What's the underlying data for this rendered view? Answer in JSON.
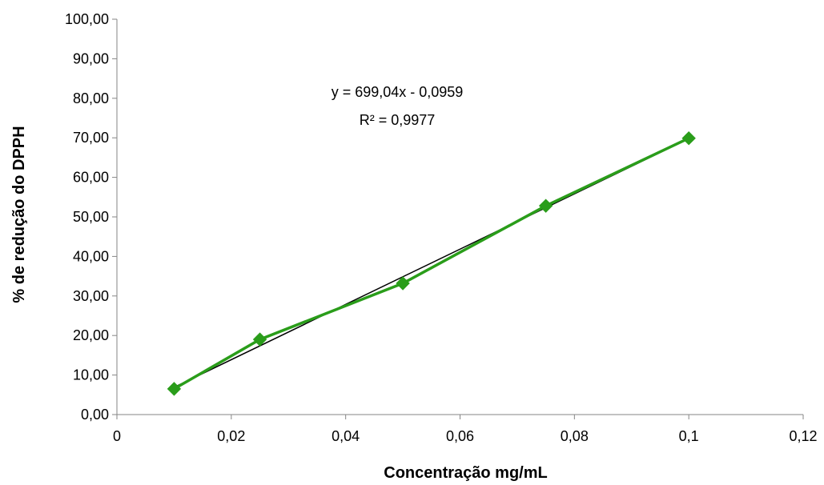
{
  "chart_data": {
    "type": "scatter",
    "title": "",
    "xlabel": "Concentração mg/mL",
    "ylabel": "% de redução do DPPH",
    "xlim": [
      0,
      0.12
    ],
    "ylim": [
      0,
      100
    ],
    "x_ticks": [
      "0",
      "0,02",
      "0,04",
      "0,06",
      "0,08",
      "0,1",
      "0,12"
    ],
    "y_ticks": [
      "0,00",
      "10,00",
      "20,00",
      "30,00",
      "40,00",
      "50,00",
      "60,00",
      "70,00",
      "80,00",
      "90,00",
      "100,00"
    ],
    "grid": false,
    "legend": "none",
    "series": [
      {
        "x": [
          0.01,
          0.025,
          0.05,
          0.075,
          0.1
        ],
        "y": [
          6.5,
          19.0,
          33.2,
          52.8,
          69.9
        ],
        "color": "#2a9d1a",
        "marker": "diamond",
        "line": true
      }
    ],
    "trendline": {
      "type": "linear",
      "slope": 699.04,
      "intercept": -0.0959,
      "x_range": [
        0.01,
        0.1
      ],
      "color": "#000000",
      "equation": "y = 699,04x - 0,0959",
      "r_squared": "R² = 0,9977"
    }
  }
}
